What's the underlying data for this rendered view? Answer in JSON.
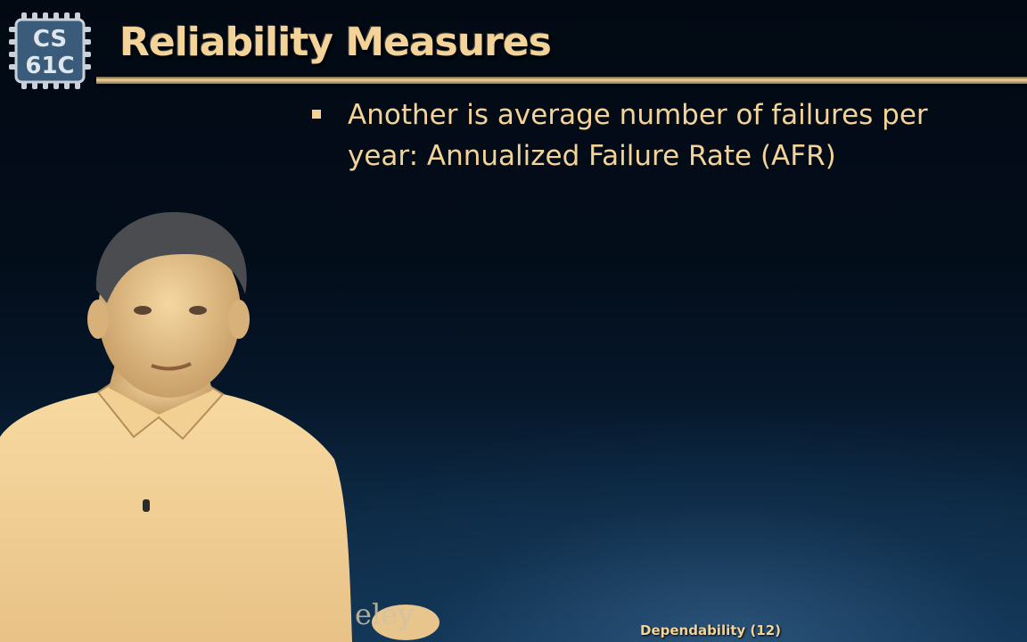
{
  "logo": {
    "line1": "CS",
    "line2": "61C"
  },
  "slide": {
    "title": "Reliability Measures",
    "bullets": [
      {
        "line1": "Another is average number of failures per",
        "line2": "year: Annualized Failure Rate (AFR)"
      }
    ],
    "watermark": "eley",
    "footer": "Dependability (12)"
  },
  "colors": {
    "background": "#020b16",
    "text": "#f3d398",
    "logo_bg": "#3a5b7a"
  }
}
